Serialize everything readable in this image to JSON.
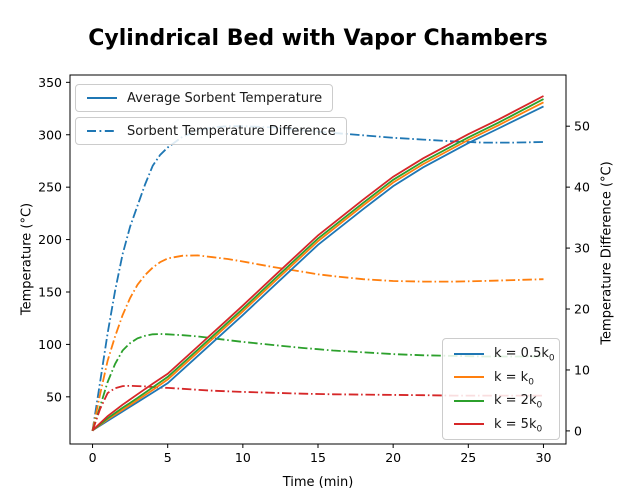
{
  "title": "Cylindrical Bed with Vapor Chambers",
  "colors": {
    "blue": "#1f77b4",
    "orange": "#ff7f0e",
    "green": "#2ca02c",
    "red": "#d62728"
  },
  "legend_line_types": {
    "avg": "Average Sorbent Temperature",
    "diff": "Sorbent Temperature Difference"
  },
  "legend_k": [
    {
      "main": "k = 0.5k",
      "sub": "0"
    },
    {
      "main": "k = k",
      "sub": "0"
    },
    {
      "main": "k = 2k",
      "sub": "0"
    },
    {
      "main": "k = 5k",
      "sub": "0"
    }
  ],
  "chart_data": {
    "type": "line",
    "title": "Cylindrical Bed with Vapor Chambers",
    "xlabel": "Time (min)",
    "ylabel_left": "Temperature (°C)",
    "ylabel_right": "Temperature Difference (°C)",
    "xlim": [
      -1.5,
      31.5
    ],
    "ylim_left": [
      5,
      357
    ],
    "ylim_right": [
      -2.15,
      58.4
    ],
    "xticks": [
      0,
      5,
      10,
      15,
      20,
      25,
      30
    ],
    "yticks_left": [
      50,
      100,
      150,
      200,
      250,
      300,
      350
    ],
    "yticks_right": [
      0,
      10,
      20,
      30,
      40,
      50
    ],
    "grid": false,
    "legend_positions": [
      "upper left (two stacked boxes)",
      "lower right (k values)"
    ],
    "series": [
      {
        "id": "diff-k0p5",
        "name": "Sorbent Temperature Difference, k = 0.5k0",
        "style": "dashdot",
        "axis": "right",
        "color": "#1f77b4",
        "x": [
          0,
          0.5,
          1,
          1.5,
          2,
          2.5,
          3,
          3.5,
          4,
          4.5,
          5,
          6,
          7,
          8,
          9,
          10,
          12,
          14,
          15,
          16,
          18,
          20,
          22,
          24,
          25,
          26,
          28,
          30
        ],
        "y": [
          0,
          8,
          16,
          23,
          29,
          33.5,
          37,
          40.5,
          43.5,
          45.3,
          46.5,
          48.3,
          49.3,
          49.8,
          50,
          50,
          49.8,
          49.3,
          49.1,
          48.9,
          48.5,
          48.1,
          47.8,
          47.5,
          47.4,
          47.3,
          47.3,
          47.4
        ]
      },
      {
        "id": "diff-k1",
        "name": "Sorbent Temperature Difference, k = k0",
        "style": "dashdot",
        "axis": "right",
        "color": "#ff7f0e",
        "x": [
          0,
          0.5,
          1,
          1.5,
          2,
          2.5,
          3,
          3.5,
          4,
          4.5,
          5,
          6,
          7,
          8,
          9,
          10,
          12,
          14,
          15,
          16,
          18,
          20,
          22,
          24,
          25,
          26,
          28,
          30
        ],
        "y": [
          0,
          6,
          11.5,
          15.5,
          19,
          21.8,
          24,
          25.6,
          26.8,
          27.7,
          28.3,
          28.75,
          28.8,
          28.5,
          28.2,
          27.8,
          26.9,
          26.1,
          25.7,
          25.4,
          24.9,
          24.6,
          24.5,
          24.5,
          24.55,
          24.6,
          24.75,
          24.9
        ]
      },
      {
        "id": "diff-k2",
        "name": "Sorbent Temperature Difference, k = 2k0",
        "style": "dashdot",
        "axis": "right",
        "color": "#2ca02c",
        "x": [
          0,
          0.5,
          1,
          1.5,
          2,
          2.5,
          3,
          3.5,
          4,
          4.5,
          5,
          6,
          7,
          8,
          9,
          10,
          12,
          14,
          15,
          16,
          18,
          20,
          22,
          24,
          25,
          26,
          28,
          30
        ],
        "y": [
          0,
          4,
          8,
          11,
          13.2,
          14.4,
          15.2,
          15.6,
          15.85,
          15.9,
          15.85,
          15.7,
          15.5,
          15.2,
          14.9,
          14.6,
          14.1,
          13.6,
          13.4,
          13.2,
          12.9,
          12.6,
          12.4,
          12.3,
          12.25,
          12.2,
          12.2,
          12.2
        ]
      },
      {
        "id": "diff-k5",
        "name": "Sorbent Temperature Difference, k = 5k0",
        "style": "dashdot",
        "axis": "right",
        "color": "#d62728",
        "x": [
          0,
          0.5,
          1,
          1.5,
          2,
          2.5,
          3,
          3.5,
          4,
          4.5,
          5,
          6,
          7,
          8,
          9,
          10,
          12,
          14,
          15,
          16,
          18,
          20,
          22,
          24,
          25,
          26,
          28,
          30
        ],
        "y": [
          0,
          3.6,
          6.2,
          7.0,
          7.35,
          7.4,
          7.35,
          7.3,
          7.2,
          7.1,
          7.05,
          6.9,
          6.75,
          6.6,
          6.5,
          6.4,
          6.25,
          6.1,
          6.05,
          6.0,
          5.95,
          5.9,
          5.85,
          5.8,
          5.8,
          5.8,
          5.8,
          5.8
        ]
      },
      {
        "id": "avg-k0p5",
        "name": "Average Sorbent Temperature, k = 0.5k0",
        "style": "solid",
        "axis": "left",
        "color": "#1f77b4",
        "x": [
          0,
          1,
          2,
          3,
          4,
          5,
          7,
          9,
          10,
          12,
          15,
          18,
          20,
          22,
          25,
          27,
          30
        ],
        "y": [
          18,
          27,
          36,
          45,
          54,
          63,
          89,
          115,
          128,
          155,
          195,
          229,
          251,
          269,
          292,
          306,
          327
        ]
      },
      {
        "id": "avg-k1",
        "name": "Average Sorbent Temperature, k = k0",
        "style": "solid",
        "axis": "left",
        "color": "#ff7f0e",
        "x": [
          0,
          1,
          2,
          3,
          4,
          5,
          7,
          9,
          10,
          12,
          15,
          18,
          20,
          22,
          25,
          27,
          30
        ],
        "y": [
          18,
          28.5,
          37.5,
          47,
          56.5,
          66.5,
          92.5,
          118.5,
          131.5,
          158.5,
          198.5,
          232.5,
          254.5,
          272,
          295,
          309,
          331
        ]
      },
      {
        "id": "avg-k2",
        "name": "Average Sorbent Temperature, k = 2k0",
        "style": "solid",
        "axis": "left",
        "color": "#2ca02c",
        "x": [
          0,
          1,
          2,
          3,
          4,
          5,
          7,
          9,
          10,
          12,
          15,
          18,
          20,
          22,
          25,
          27,
          30
        ],
        "y": [
          18,
          29.5,
          39.5,
          49,
          59,
          69,
          95,
          121,
          134,
          161,
          201,
          235,
          257,
          274.5,
          297.5,
          311.5,
          334
        ]
      },
      {
        "id": "avg-k5",
        "name": "Average Sorbent Temperature, k = 5k0",
        "style": "solid",
        "axis": "left",
        "color": "#d62728",
        "x": [
          0,
          1,
          2,
          3,
          4,
          5,
          7,
          9,
          10,
          12,
          15,
          18,
          20,
          22,
          25,
          27,
          30
        ],
        "y": [
          18,
          31.5,
          42.5,
          52.5,
          62.5,
          72,
          98,
          124,
          137,
          164,
          204,
          238,
          260,
          277.5,
          300.5,
          314.5,
          337
        ]
      }
    ]
  }
}
